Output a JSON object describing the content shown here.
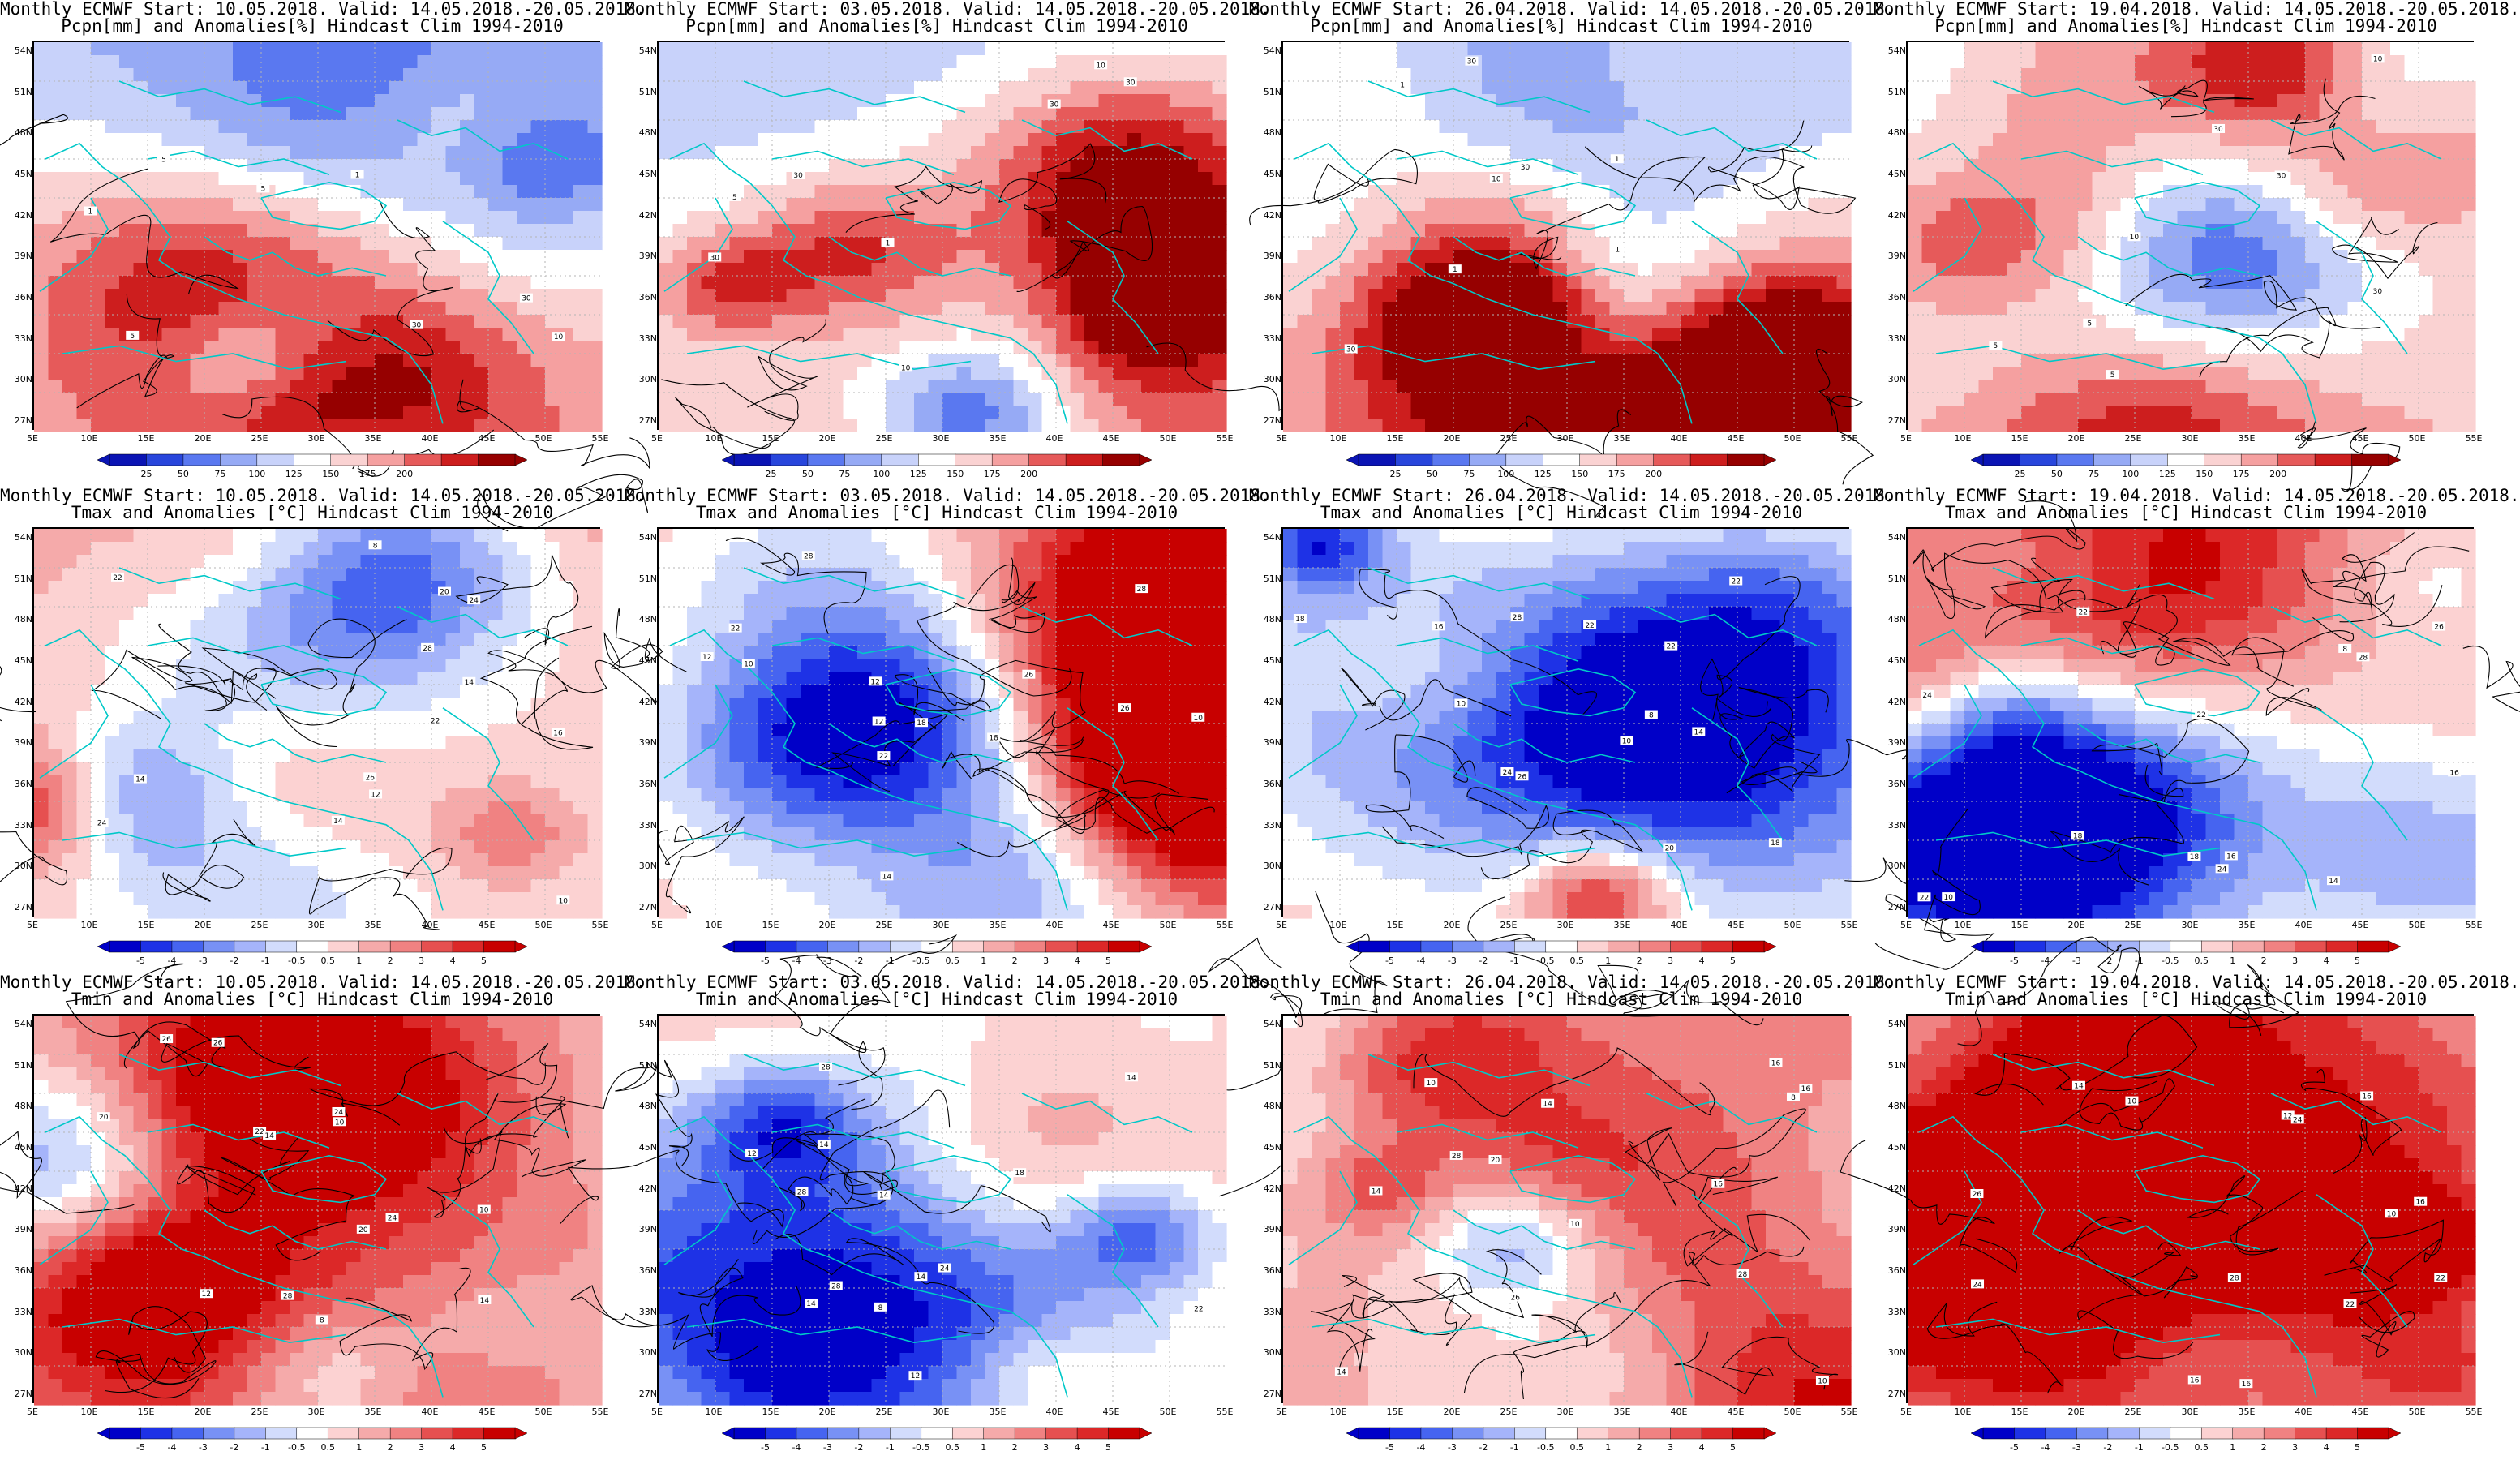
{
  "panels": [
    {
      "title1": "Monthly ECMWF Start: 10.05.2018. Valid: 14.05.2018.-20.05.2018.",
      "title2": "Pcpn[mm] and Anomalies[%] Hindcast Clim 1994-2010",
      "var": "pcpn",
      "seed": 11
    },
    {
      "title1": "Monthly ECMWF Start: 03.05.2018. Valid: 14.05.2018.-20.05.2018.",
      "title2": "Pcpn[mm] and Anomalies[%] Hindcast Clim 1994-2010",
      "var": "pcpn",
      "seed": 23
    },
    {
      "title1": "Monthly ECMWF Start: 26.04.2018. Valid: 14.05.2018.-20.05.2018.",
      "title2": "Pcpn[mm] and Anomalies[%] Hindcast Clim 1994-2010",
      "var": "pcpn",
      "seed": 37
    },
    {
      "title1": "Monthly ECMWF Start: 19.04.2018. Valid: 14.05.2018.-20.05.2018.",
      "title2": "Pcpn[mm] and Anomalies[%] Hindcast Clim 1994-2010",
      "var": "pcpn",
      "seed": 41
    },
    {
      "title1": "Monthly ECMWF Start: 10.05.2018. Valid: 14.05.2018.-20.05.2018.",
      "title2": "Tmax and Anomalies [°C] Hindcast Clim 1994-2010",
      "var": "tmax",
      "seed": 53
    },
    {
      "title1": "Monthly ECMWF Start: 03.05.2018. Valid: 14.05.2018.-20.05.2018.",
      "title2": "Tmax and Anomalies [°C] Hindcast Clim 1994-2010",
      "var": "tmax",
      "seed": 61
    },
    {
      "title1": "Monthly ECMWF Start: 26.04.2018. Valid: 14.05.2018.-20.05.2018.",
      "title2": "Tmax and Anomalies [°C] Hindcast Clim 1994-2010",
      "var": "tmax",
      "seed": 71
    },
    {
      "title1": "Monthly ECMWF Start: 19.04.2018. Valid: 14.05.2018.-20.05.2018.",
      "title2": "Tmax and Anomalies [°C] Hindcast Clim 1994-2010",
      "var": "tmax",
      "seed": 83
    },
    {
      "title1": "Monthly ECMWF Start: 10.05.2018. Valid: 14.05.2018.-20.05.2018.",
      "title2": "Tmin and Anomalies [°C] Hindcast Clim 1994-2010",
      "var": "tmin",
      "seed": 97
    },
    {
      "title1": "Monthly ECMWF Start: 03.05.2018. Valid: 14.05.2018.-20.05.2018.",
      "title2": "Tmin and Anomalies [°C] Hindcast Clim 1994-2010",
      "var": "tmin",
      "seed": 101
    },
    {
      "title1": "Monthly ECMWF Start: 26.04.2018. Valid: 14.05.2018.-20.05.2018.",
      "title2": "Tmin and Anomalies [°C] Hindcast Clim 1994-2010",
      "var": "tmin",
      "seed": 113
    },
    {
      "title1": "Monthly ECMWF Start: 19.04.2018. Valid: 14.05.2018.-20.05.2018.",
      "title2": "Tmin and Anomalies [°C] Hindcast Clim 1994-2010",
      "var": "tmin",
      "seed": 127
    }
  ],
  "lat_labels": [
    "54N",
    "51N",
    "48N",
    "45N",
    "42N",
    "39N",
    "36N",
    "33N",
    "30N",
    "27N"
  ],
  "lon_labels": [
    "5E",
    "10E",
    "15E",
    "20E",
    "25E",
    "30E",
    "35E",
    "40E",
    "45E",
    "50E",
    "55E"
  ],
  "pcpn_colorbar": {
    "ticks": [
      "25",
      "50",
      "75",
      "100",
      "125",
      "150",
      "175",
      "200"
    ],
    "colors": [
      "#0a14b4",
      "#2846dc",
      "#5a78f0",
      "#96aaf5",
      "#c8d2fa",
      "#ffffff",
      "#fad2d2",
      "#f5a0a0",
      "#e65a5a",
      "#cd1e1e",
      "#960000"
    ]
  },
  "temp_colorbar": {
    "ticks": [
      "-5",
      "-4",
      "-3",
      "-2",
      "-1",
      "-0.5",
      "0.5",
      "1",
      "2",
      "3",
      "4",
      "5"
    ],
    "colors": [
      "#0000c8",
      "#1e32e6",
      "#4664f0",
      "#7891f5",
      "#a5b4fa",
      "#d2dcfc",
      "#ffffff",
      "#fcd2d2",
      "#f5aaaa",
      "#f08282",
      "#e65050",
      "#dc2828",
      "#c80000"
    ]
  },
  "contour_labels": [
    "10",
    "30",
    "1",
    "5",
    "12",
    "16",
    "18",
    "20",
    "22",
    "24",
    "26",
    "28",
    "8",
    "14"
  ],
  "colors": {
    "coast": "#00c8c8",
    "contour": "#000000",
    "grid": "#b4b4b4"
  }
}
